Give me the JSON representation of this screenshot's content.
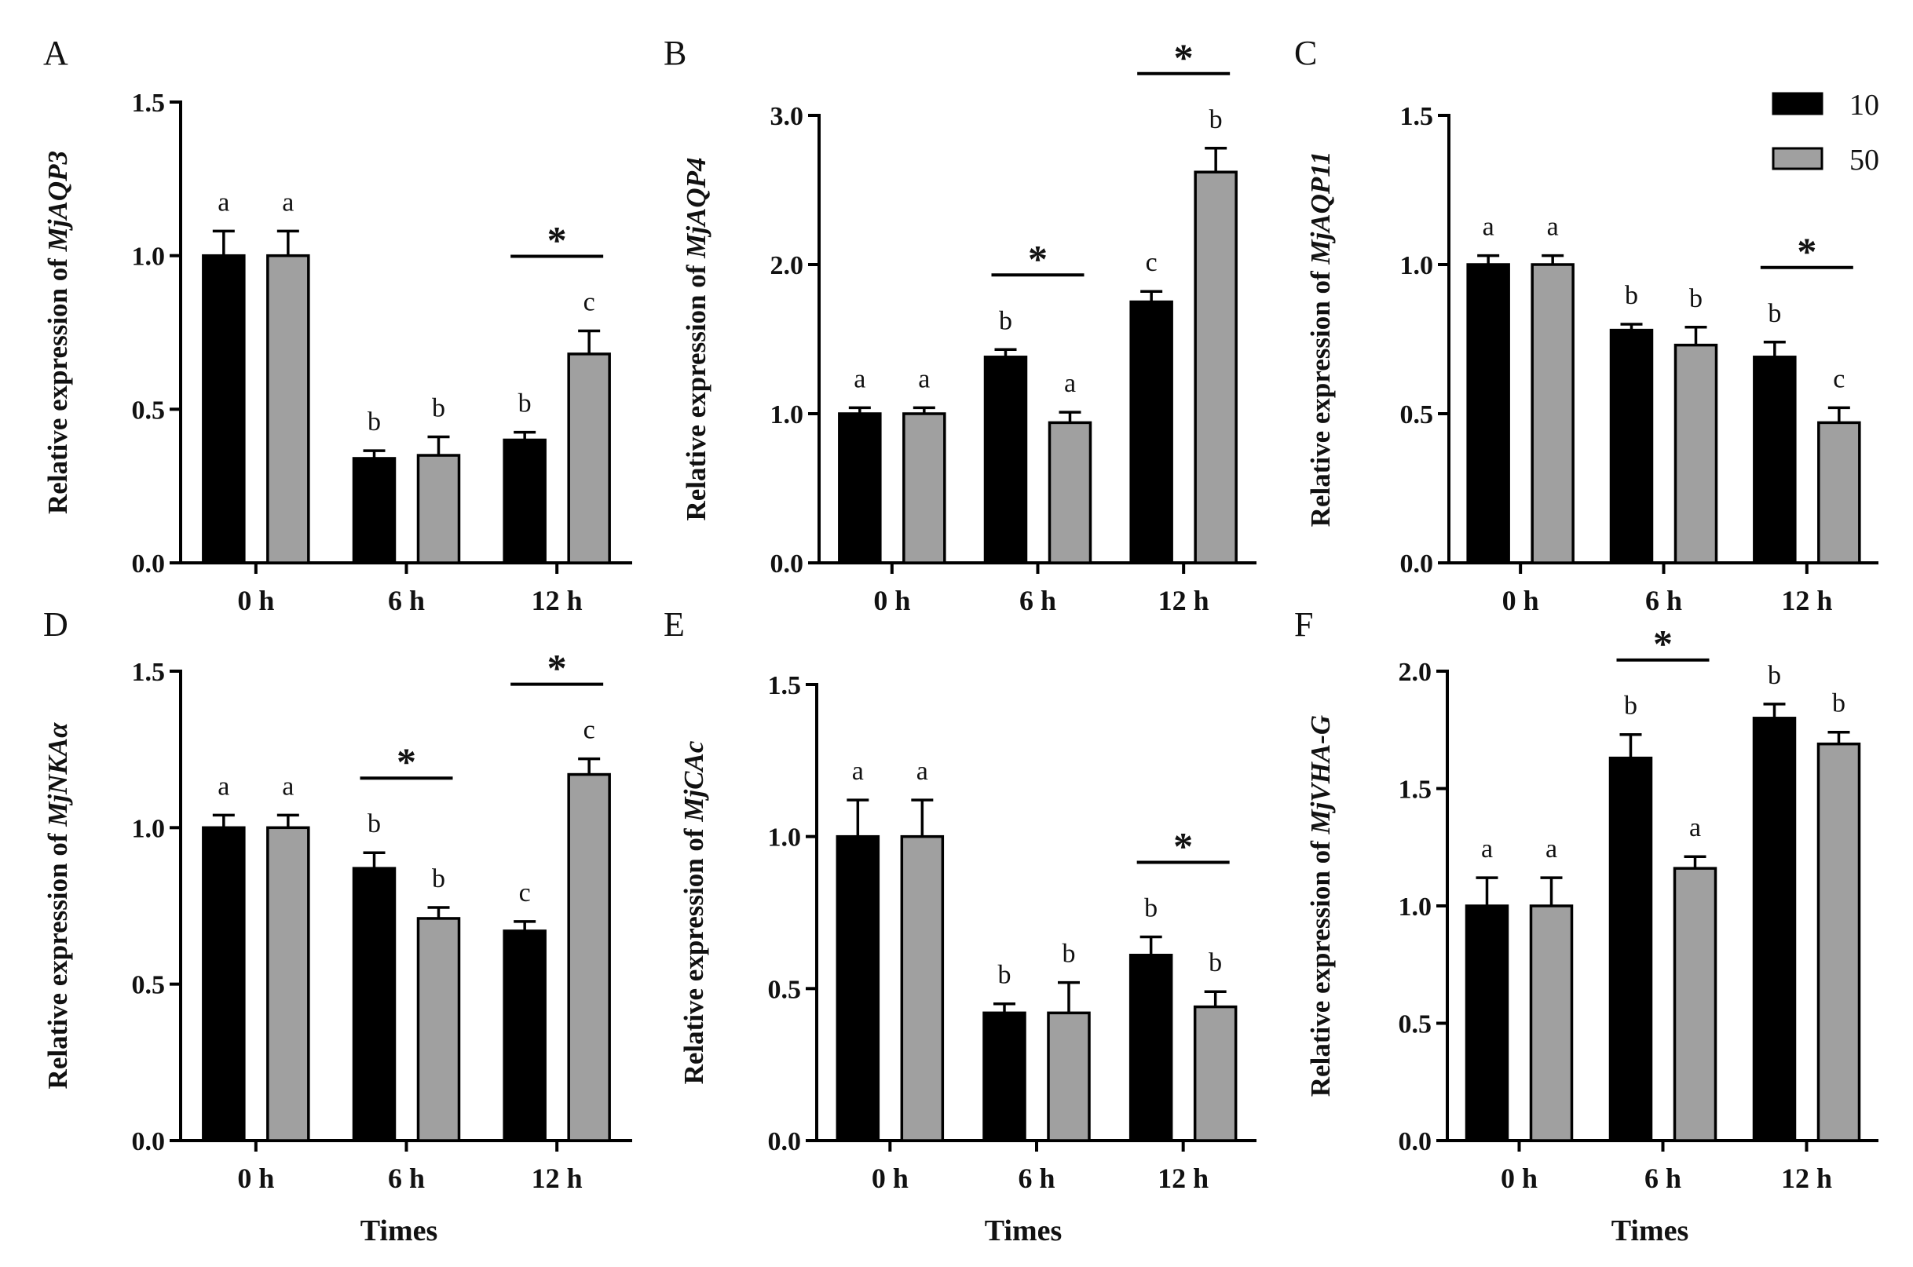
{
  "legend": [
    {
      "name": "10",
      "color": "#000000"
    },
    {
      "name": "50",
      "color": "#a0a0a0"
    }
  ],
  "chart_data": [
    {
      "panel": "A",
      "type": "bar",
      "ylabel_prefix": "Relative expression of ",
      "gene": "MjAQP3",
      "xlabel": "",
      "categories": [
        "0 h",
        "6 h",
        "12 h"
      ],
      "ylim": [
        0,
        1.5
      ],
      "yticks": [
        0.0,
        0.5,
        1.0,
        1.5
      ],
      "tick_labels": [
        "0.0",
        "0.5",
        "1.0",
        "1.5"
      ],
      "series": [
        {
          "name": "10",
          "values": [
            1.0,
            0.34,
            0.4
          ],
          "errors": [
            0.08,
            0.025,
            0.025
          ],
          "letters": [
            "a",
            "b",
            "b"
          ]
        },
        {
          "name": "50",
          "values": [
            1.0,
            0.35,
            0.68
          ],
          "errors": [
            0.08,
            0.06,
            0.075
          ],
          "letters": [
            "a",
            "b",
            "c"
          ]
        }
      ],
      "significance": [
        {
          "category": "12 h",
          "label": "*"
        }
      ]
    },
    {
      "panel": "B",
      "type": "bar",
      "ylabel_prefix": "Relative expression of ",
      "gene": "MjAQP4",
      "xlabel": "",
      "categories": [
        "0 h",
        "6 h",
        "12 h"
      ],
      "ylim": [
        0,
        3.0
      ],
      "yticks": [
        0.0,
        1.0,
        2.0,
        3.0
      ],
      "tick_labels": [
        "0.0",
        "1.0",
        "2.0",
        "3.0"
      ],
      "series": [
        {
          "name": "10",
          "values": [
            1.0,
            1.38,
            1.75
          ],
          "errors": [
            0.04,
            0.05,
            0.07
          ],
          "letters": [
            "a",
            "b",
            "c"
          ]
        },
        {
          "name": "50",
          "values": [
            1.0,
            0.94,
            2.62
          ],
          "errors": [
            0.04,
            0.07,
            0.16
          ],
          "letters": [
            "a",
            "a",
            "b"
          ]
        }
      ],
      "significance": [
        {
          "category": "6 h",
          "label": "*"
        },
        {
          "category": "12 h",
          "label": "*"
        }
      ]
    },
    {
      "panel": "C",
      "type": "bar",
      "ylabel_prefix": "Relative expression of ",
      "gene": "MjAQP11",
      "xlabel": "",
      "categories": [
        "0 h",
        "6 h",
        "12 h"
      ],
      "ylim": [
        0,
        1.5
      ],
      "yticks": [
        0.0,
        0.5,
        1.0,
        1.5
      ],
      "tick_labels": [
        "0.0",
        "0.5",
        "1.0",
        "1.5"
      ],
      "series": [
        {
          "name": "10",
          "values": [
            1.0,
            0.78,
            0.69
          ],
          "errors": [
            0.03,
            0.02,
            0.05
          ],
          "letters": [
            "a",
            "b",
            "b"
          ]
        },
        {
          "name": "50",
          "values": [
            1.0,
            0.73,
            0.47
          ],
          "errors": [
            0.03,
            0.06,
            0.05
          ],
          "letters": [
            "a",
            "b",
            "c"
          ]
        }
      ],
      "significance": [
        {
          "category": "12 h",
          "label": "*"
        }
      ]
    },
    {
      "panel": "D",
      "type": "bar",
      "ylabel_prefix": "Relative expression of ",
      "gene": "MjNKAα",
      "xlabel": "Times",
      "categories": [
        "0 h",
        "6 h",
        "12 h"
      ],
      "ylim": [
        0,
        1.5
      ],
      "yticks": [
        0.0,
        0.5,
        1.0,
        1.5
      ],
      "tick_labels": [
        "0.0",
        "0.5",
        "1.0",
        "1.5"
      ],
      "series": [
        {
          "name": "10",
          "values": [
            1.0,
            0.87,
            0.67
          ],
          "errors": [
            0.04,
            0.05,
            0.03
          ],
          "letters": [
            "a",
            "b",
            "c"
          ]
        },
        {
          "name": "50",
          "values": [
            1.0,
            0.71,
            1.17
          ],
          "errors": [
            0.04,
            0.035,
            0.05
          ],
          "letters": [
            "a",
            "b",
            "c"
          ]
        }
      ],
      "significance": [
        {
          "category": "6 h",
          "label": "*"
        },
        {
          "category": "12 h",
          "label": "*"
        }
      ]
    },
    {
      "panel": "E",
      "type": "bar",
      "ylabel_prefix": "Relative expression of ",
      "gene": "MjCAc",
      "xlabel": "Times",
      "categories": [
        "0 h",
        "6 h",
        "12 h"
      ],
      "ylim": [
        0,
        1.5
      ],
      "yticks": [
        0.0,
        0.5,
        1.0,
        1.5
      ],
      "tick_labels": [
        "0.0",
        "0.5",
        "1.0",
        "1.5"
      ],
      "series": [
        {
          "name": "10",
          "values": [
            1.0,
            0.42,
            0.61
          ],
          "errors": [
            0.12,
            0.03,
            0.06
          ],
          "letters": [
            "a",
            "b",
            "b"
          ]
        },
        {
          "name": "50",
          "values": [
            1.0,
            0.42,
            0.44
          ],
          "errors": [
            0.12,
            0.1,
            0.05
          ],
          "letters": [
            "a",
            "b",
            "b"
          ]
        }
      ],
      "significance": [
        {
          "category": "12 h",
          "label": "*"
        }
      ]
    },
    {
      "panel": "F",
      "type": "bar",
      "ylabel_prefix": "Relative expression of ",
      "gene": "MjVHA-G",
      "xlabel": "Times",
      "categories": [
        "0 h",
        "6 h",
        "12 h"
      ],
      "ylim": [
        0,
        2.0
      ],
      "yticks": [
        0.0,
        0.5,
        1.0,
        1.5,
        2.0
      ],
      "tick_labels": [
        "0.0",
        "0.5",
        "1.0",
        "1.5",
        "2.0"
      ],
      "series": [
        {
          "name": "10",
          "values": [
            1.0,
            1.63,
            1.8
          ],
          "errors": [
            0.12,
            0.1,
            0.06
          ],
          "letters": [
            "a",
            "b",
            "b"
          ]
        },
        {
          "name": "50",
          "values": [
            1.0,
            1.16,
            1.69
          ],
          "errors": [
            0.12,
            0.05,
            0.05
          ],
          "letters": [
            "a",
            "a",
            "b"
          ]
        }
      ],
      "significance": [
        {
          "category": "6 h",
          "label": "*"
        }
      ]
    }
  ]
}
